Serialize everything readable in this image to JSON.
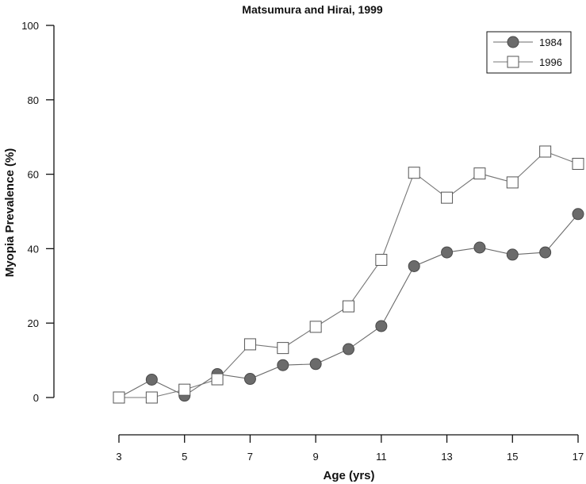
{
  "chart_data": {
    "type": "line",
    "title": "Matsumura and Hirai, 1999",
    "xlabel": "Age (yrs)",
    "ylabel": "Myopia Prevalence (%)",
    "xlim": [
      3,
      17
    ],
    "ylim": [
      0,
      100
    ],
    "x_ticks": [
      "3",
      "5",
      "7",
      "9",
      "11",
      "13",
      "15",
      "17"
    ],
    "y_ticks": [
      "0",
      "20",
      "40",
      "60",
      "80",
      "100"
    ],
    "x": [
      3,
      4,
      5,
      6,
      7,
      8,
      9,
      10,
      11,
      12,
      13,
      14,
      15,
      16,
      17
    ],
    "series": [
      {
        "name": "1984",
        "marker": "filled-circle",
        "color": "#6b6b6b",
        "values": [
          0,
          4.8,
          0.5,
          6.3,
          5.0,
          8.7,
          9.0,
          13.0,
          19.2,
          35.3,
          39.0,
          40.3,
          38.4,
          39.0,
          49.3
        ]
      },
      {
        "name": "1996",
        "marker": "open-square",
        "color": "#777777",
        "values": [
          0,
          0,
          2.1,
          4.9,
          14.3,
          13.3,
          19.0,
          24.5,
          37.0,
          60.4,
          53.7,
          60.2,
          57.8,
          66.1,
          62.8
        ]
      }
    ],
    "legend_position": "top-right",
    "grid": false
  }
}
